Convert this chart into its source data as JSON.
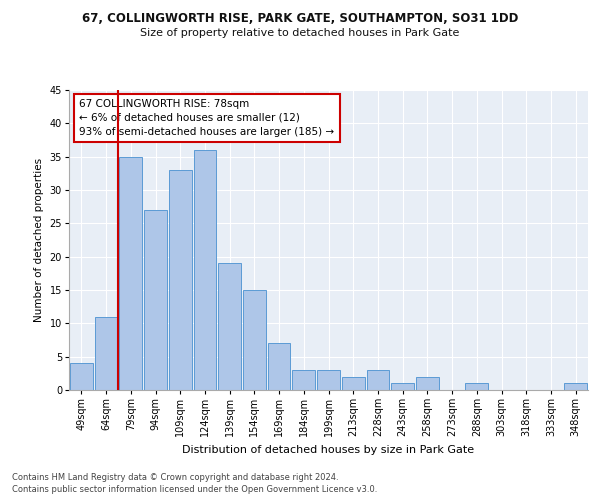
{
  "title1": "67, COLLINGWORTH RISE, PARK GATE, SOUTHAMPTON, SO31 1DD",
  "title2": "Size of property relative to detached houses in Park Gate",
  "xlabel": "Distribution of detached houses by size in Park Gate",
  "ylabel": "Number of detached properties",
  "categories": [
    "49sqm",
    "64sqm",
    "79sqm",
    "94sqm",
    "109sqm",
    "124sqm",
    "139sqm",
    "154sqm",
    "169sqm",
    "184sqm",
    "199sqm",
    "213sqm",
    "228sqm",
    "243sqm",
    "258sqm",
    "273sqm",
    "288sqm",
    "303sqm",
    "318sqm",
    "333sqm",
    "348sqm"
  ],
  "values": [
    4,
    11,
    35,
    27,
    33,
    36,
    19,
    15,
    7,
    3,
    3,
    2,
    3,
    1,
    2,
    0,
    1,
    0,
    0,
    0,
    1
  ],
  "bar_color": "#aec6e8",
  "bar_edge_color": "#5b9bd5",
  "highlight_line_color": "#cc0000",
  "annotation_text": "67 COLLINGWORTH RISE: 78sqm\n← 6% of detached houses are smaller (12)\n93% of semi-detached houses are larger (185) →",
  "annotation_box_color": "#ffffff",
  "annotation_box_edge_color": "#cc0000",
  "ylim": [
    0,
    45
  ],
  "yticks": [
    0,
    5,
    10,
    15,
    20,
    25,
    30,
    35,
    40,
    45
  ],
  "footer1": "Contains HM Land Registry data © Crown copyright and database right 2024.",
  "footer2": "Contains public sector information licensed under the Open Government Licence v3.0.",
  "bg_color": "#e8eef6",
  "fig_bg_color": "#ffffff",
  "title1_fontsize": 8.5,
  "title2_fontsize": 8.0,
  "ylabel_fontsize": 7.5,
  "xlabel_fontsize": 8.0,
  "tick_fontsize": 7.0,
  "annot_fontsize": 7.5,
  "footer_fontsize": 6.0
}
